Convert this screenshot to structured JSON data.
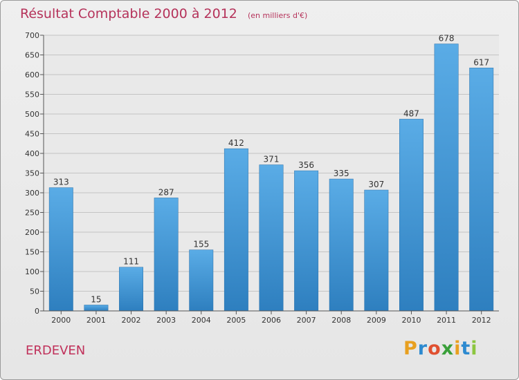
{
  "chart_data": {
    "type": "bar",
    "title": "Résultat Comptable 2000 à 2012",
    "subtitle": "(en milliers d'€)",
    "categories": [
      "2000",
      "2001",
      "2002",
      "2003",
      "2004",
      "2005",
      "2006",
      "2007",
      "2008",
      "2009",
      "2010",
      "2011",
      "2012"
    ],
    "values": [
      313,
      15,
      111,
      287,
      155,
      412,
      371,
      356,
      335,
      307,
      487,
      678,
      617
    ],
    "yticks": [
      0,
      50,
      100,
      150,
      200,
      250,
      300,
      350,
      400,
      450,
      500,
      550,
      600,
      650,
      700
    ],
    "ylim": [
      0,
      700
    ],
    "xlabel": "",
    "ylabel": "",
    "grid": true,
    "bar_color_top": "#5aace6",
    "bar_color_bottom": "#2e7fbf"
  },
  "location": "ERDEVEN",
  "brand": {
    "letters": [
      "P",
      "r",
      "o",
      "x",
      "i",
      "t",
      "i"
    ],
    "colors": [
      "#e8a020",
      "#2d8ad0",
      "#e05030",
      "#3aa03a",
      "#e8a020",
      "#2d8ad0",
      "#8cc63f"
    ]
  }
}
